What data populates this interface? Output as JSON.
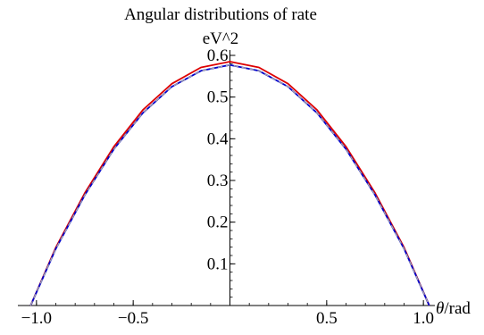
{
  "chart_data": {
    "type": "line",
    "title": "Angular distributions of rate",
    "ylabel": "eV^2",
    "xlabel_symbol": "θ",
    "xlabel_unit": "/rad",
    "xlim": [
      -1.05,
      1.05
    ],
    "ylim": [
      0,
      0.6
    ],
    "x_ticks": [
      -1.0,
      -0.5,
      0.5,
      1.0
    ],
    "x_tick_labels": [
      "−1.0",
      "−0.5",
      "0.5",
      "1.0"
    ],
    "y_ticks": [
      0.1,
      0.2,
      0.3,
      0.4,
      0.5,
      0.6
    ],
    "y_tick_labels": [
      "0.1",
      "0.2",
      "0.3",
      "0.4",
      "0.5",
      "0.6"
    ],
    "grid": false,
    "x_minor_step": 0.1,
    "y_minor_step": 0.02,
    "series": [
      {
        "color": "#dd0000",
        "style": "solid",
        "x": [
          -1.03,
          -0.9,
          -0.75,
          -0.6,
          -0.45,
          -0.3,
          -0.15,
          0.0,
          0.15,
          0.3,
          0.45,
          0.6,
          0.75,
          0.9,
          1.03
        ],
        "y": [
          0.0,
          0.139,
          0.27,
          0.381,
          0.469,
          0.532,
          0.571,
          0.585,
          0.571,
          0.532,
          0.469,
          0.381,
          0.27,
          0.139,
          0.0
        ]
      },
      {
        "color": "#0000cc",
        "style": "solid",
        "x": [
          -1.03,
          -0.9,
          -0.75,
          -0.6,
          -0.45,
          -0.3,
          -0.15,
          0.0,
          0.15,
          0.3,
          0.45,
          0.6,
          0.75,
          0.9,
          1.03
        ],
        "y": [
          0.0,
          0.136,
          0.265,
          0.375,
          0.462,
          0.525,
          0.563,
          0.577,
          0.563,
          0.525,
          0.462,
          0.375,
          0.265,
          0.136,
          0.0
        ]
      },
      {
        "color": "#aaaaaa",
        "style": "dashed",
        "x": [
          -1.03,
          -0.9,
          -0.75,
          -0.6,
          -0.45,
          -0.3,
          -0.15,
          0.0,
          0.15,
          0.3,
          0.45,
          0.6,
          0.75,
          0.9,
          1.03
        ],
        "y": [
          0.0,
          0.136,
          0.265,
          0.375,
          0.462,
          0.525,
          0.563,
          0.577,
          0.563,
          0.525,
          0.462,
          0.375,
          0.265,
          0.136,
          0.0
        ]
      }
    ]
  }
}
